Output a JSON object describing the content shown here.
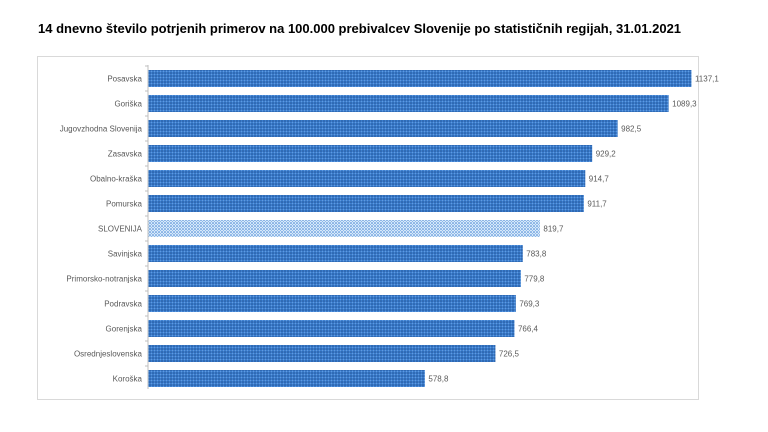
{
  "chart_data": {
    "type": "bar",
    "orientation": "horizontal",
    "title": "14 dnevno število potrjenih primerov na 100.000  prebivalcev Slovenije po statističnih regijah, 31.01.2021",
    "xlabel": "",
    "ylabel": "",
    "xlim": [
      0,
      1200
    ],
    "grid": false,
    "categories": [
      "Posavska",
      "Goriška",
      "Jugovzhodna Slovenija",
      "Zasavska",
      "Obalno-kraška",
      "Pomurska",
      "SLOVENIJA",
      "Savinjska",
      "Primorsko-notranjska",
      "Podravska",
      "Gorenjska",
      "Osrednjeslovenska",
      "Koroška"
    ],
    "values": [
      1137.1,
      1089.3,
      982.5,
      929.2,
      914.7,
      911.7,
      819.7,
      783.8,
      779.8,
      769.3,
      766.4,
      726.5,
      578.8
    ],
    "value_labels": [
      "1137,1",
      "1089,3",
      "982,5",
      "929,2",
      "914,7",
      "911,7",
      "819,7",
      "783,8",
      "779,8",
      "769,3",
      "766,4",
      "726,5",
      "578,8"
    ],
    "highlight_category": "SLOVENIJA",
    "colors": {
      "bar": "#3d7fd0",
      "bar_dots": "#1f4e8c",
      "highlight_bar": "#cfe3f7",
      "highlight_dots": "#3d7fd0",
      "axis": "#bfbfbf",
      "text": "#595959"
    }
  }
}
